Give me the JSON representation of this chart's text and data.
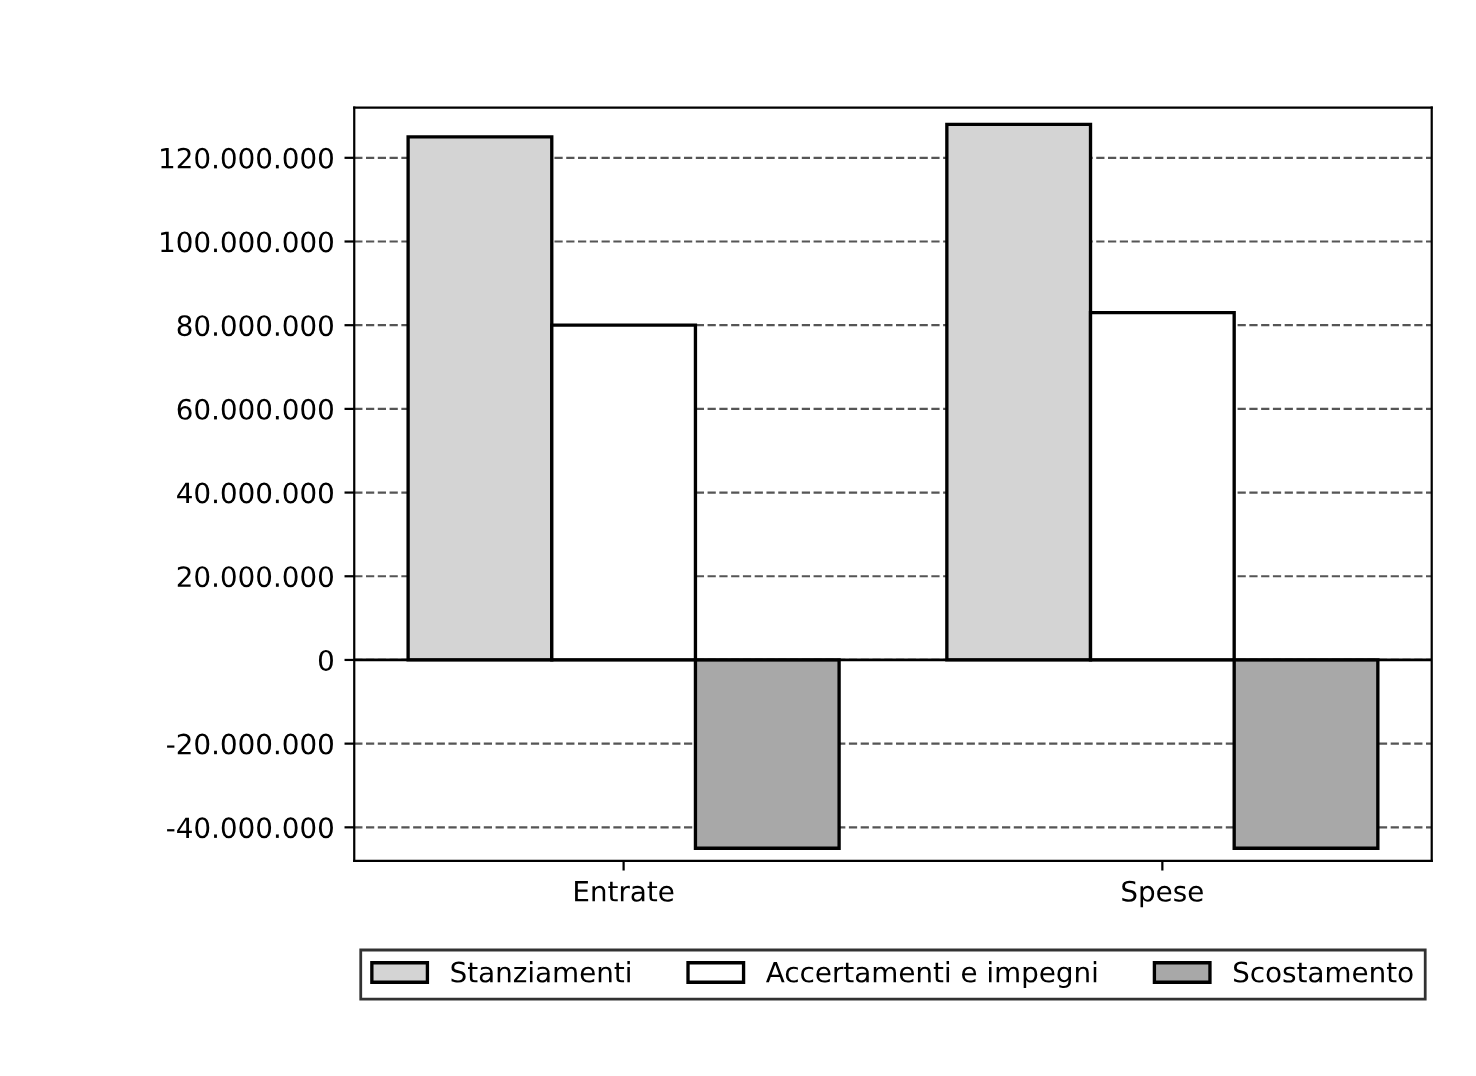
{
  "chart_data": {
    "type": "bar",
    "categories": [
      "Entrate",
      "Spese"
    ],
    "series": [
      {
        "name": "Stanziamenti",
        "color": "#d4d4d4",
        "values": [
          125000000,
          128000000
        ]
      },
      {
        "name": "Accertamenti e impegni",
        "color": "#ffffff",
        "values": [
          80000000,
          83000000
        ]
      },
      {
        "name": "Scostamento",
        "color": "#a8a8a8",
        "values": [
          -45000000,
          -45000000
        ]
      }
    ],
    "ylim": [
      -48000000,
      132000000
    ],
    "yticks": [
      {
        "value": -40000000,
        "label": "-40.000.000"
      },
      {
        "value": -20000000,
        "label": "-20.000.000"
      },
      0,
      {
        "value": 20000000,
        "label": "20.000.000"
      },
      {
        "value": 40000000,
        "label": "40.000.000"
      },
      {
        "value": 60000000,
        "label": "60.000.000"
      },
      {
        "value": 80000000,
        "label": "80.000.000"
      },
      {
        "value": 100000000,
        "label": "100.000.000"
      },
      {
        "value": 120000000,
        "label": "120.000.000"
      }
    ],
    "grid": "y",
    "line_style": "dashed",
    "legend": "bottom"
  }
}
